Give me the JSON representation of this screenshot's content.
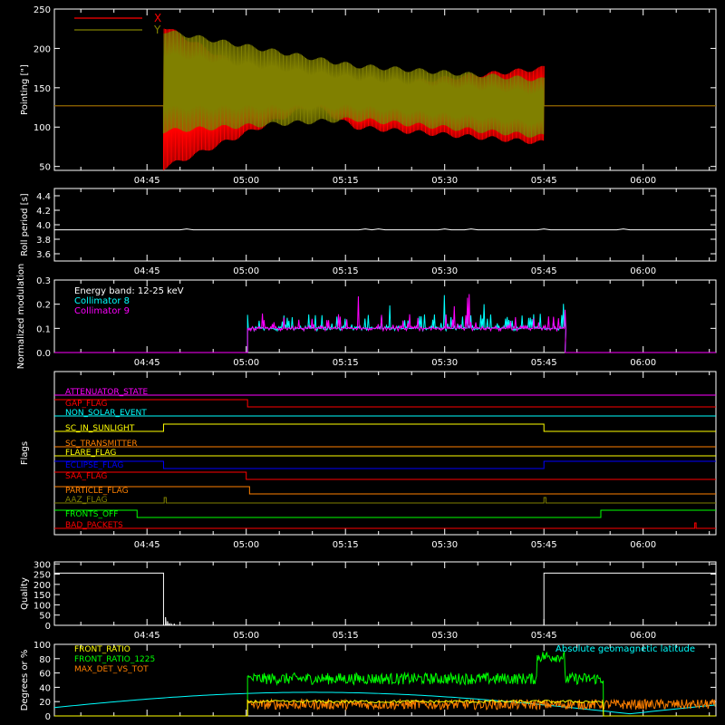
{
  "time_axis": {
    "tick_labels": [
      "04:45",
      "05:00",
      "05:15",
      "05:30",
      "05:45",
      "06:00"
    ],
    "tick_values_min": [
      285,
      300,
      315,
      330,
      345,
      360
    ],
    "range_min": [
      271,
      371
    ]
  },
  "chart_data": [
    {
      "type": "line",
      "ylabel": "Pointing [\"]",
      "ylim": [
        45,
        250
      ],
      "y_ticks": [
        50,
        100,
        150,
        200,
        250
      ],
      "legend_placement": "top-left",
      "series": [
        {
          "name": "X",
          "color": "#ff0000",
          "baseline": 127,
          "active_range_min": [
            287.5,
            345
          ],
          "envelope_start": [
            48,
            228
          ],
          "envelope_mid": [
            150,
            100
          ],
          "envelope_end": [
            175,
            80
          ]
        },
        {
          "name": "Y",
          "color": "#808000",
          "baseline": 127,
          "active_range_min": [
            287.5,
            345
          ],
          "envelope_start": [
            95,
            222
          ],
          "envelope_mid": [
            110,
            178
          ],
          "envelope_end": [
            88,
            160
          ]
        }
      ]
    },
    {
      "type": "line",
      "ylabel": "Roll period [s]",
      "ylim": [
        3.5,
        4.5
      ],
      "y_ticks": [
        "3.6",
        "3.8",
        "4.0",
        "4.2",
        "4.4"
      ],
      "series": [
        {
          "color": "#ffffff",
          "value": 3.93
        }
      ]
    },
    {
      "type": "line",
      "ylabel": "Normalized modulation",
      "ylim": [
        0,
        0.3
      ],
      "y_ticks": [
        "0.0",
        "0.1",
        "0.2",
        "0.3"
      ],
      "annotation": "Energy band: 12-25 keV",
      "series": [
        {
          "name": "Collimator 8",
          "color": "#00ffff",
          "active_range_min": [
            300.2,
            348.2
          ],
          "level": 0.1
        },
        {
          "name": "Collimator 9",
          "color": "#ff00ff",
          "active_range_min": [
            300.2,
            348.2
          ],
          "level": 0.1
        }
      ]
    },
    {
      "type": "line",
      "ylabel": "Flags",
      "flags": [
        {
          "name": "ATTENUATOR_STATE",
          "color": "#ff00ff"
        },
        {
          "name": "GAP_FLAG",
          "color": "#ff0000"
        },
        {
          "name": "NON_SOLAR_EVENT",
          "color": "#00ffff"
        },
        {
          "name": "SC_IN_SUNLIGHT",
          "color": "#ffff00"
        },
        {
          "name": "SC_TRANSMITTER",
          "color": "#ff8000"
        },
        {
          "name": "FLARE_FLAG",
          "color": "#ffff00"
        },
        {
          "name": "ECLIPSE_FLAG",
          "color": "#0000ff"
        },
        {
          "name": "SAA_FLAG",
          "color": "#ff0000"
        },
        {
          "name": "PARTICLE_FLAG",
          "color": "#ff8000"
        },
        {
          "name": "AAZ_FLAG",
          "color": "#808000"
        },
        {
          "name": "FRONTS_OFF",
          "color": "#00ff00"
        },
        {
          "name": "BAD_PACKETS",
          "color": "#ff0000"
        }
      ]
    },
    {
      "type": "line",
      "ylabel": "Quality",
      "ylim": [
        0,
        310
      ],
      "y_ticks": [
        0,
        50,
        100,
        150,
        200,
        250,
        300
      ],
      "series": [
        {
          "color": "#ffffff",
          "high_value": 255,
          "low_range_min": [
            287.5,
            345
          ]
        }
      ]
    },
    {
      "type": "line",
      "ylabel": "Degrees or %",
      "ylim": [
        0,
        100
      ],
      "y_ticks": [
        0,
        20,
        40,
        60,
        80,
        100
      ],
      "series": [
        {
          "name": "FRONT_RATIO",
          "color": "#ffff00"
        },
        {
          "name": "FRONT_RATIO_1225",
          "color": "#00ff00",
          "active_range_min": [
            300.2,
            354
          ],
          "level": 52,
          "raised_range_min": [
            344,
            348.2
          ],
          "raised_level": 83
        },
        {
          "name": "MAX_DET_VS_TOT",
          "color": "#ff8000",
          "active_range_min": [
            300.2,
            371
          ],
          "level": 15
        },
        {
          "name": "Absolute geomagnetic latitude",
          "color": "#00ffff"
        }
      ]
    }
  ]
}
